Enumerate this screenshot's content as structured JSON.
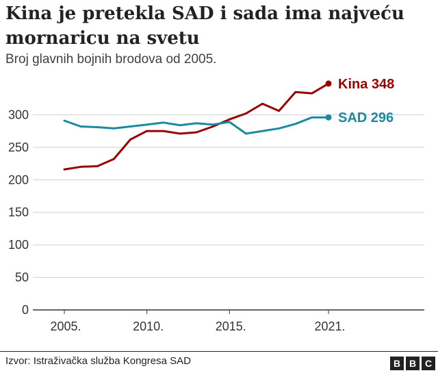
{
  "header": {
    "title": "Kina je pretekla SAD i sada ima najveću mornaricu na svetu",
    "subtitle": "Broj glavnih bojnih brodova od 2005."
  },
  "footer": {
    "source": "Izvor: Istraživačka služba Kongresa SAD",
    "logo_letters": [
      "B",
      "B",
      "C"
    ]
  },
  "chart_data": {
    "type": "line",
    "title": "Kina je pretekla SAD i sada ima najveću mornaricu na svetu",
    "subtitle": "Broj glavnih bojnih brodova od 2005.",
    "x": [
      2005,
      2006,
      2007,
      2008,
      2009,
      2010,
      2011,
      2012,
      2013,
      2014,
      2015,
      2016,
      2017,
      2018,
      2019,
      2020,
      2021
    ],
    "xticks": [
      2005,
      2010,
      2015,
      2021
    ],
    "xtick_labels": [
      "2005.",
      "2010.",
      "2015.",
      "2021."
    ],
    "yticks": [
      0,
      50,
      100,
      150,
      200,
      250,
      300
    ],
    "ytick_labels": [
      "0",
      "50",
      "100",
      "150",
      "200",
      "250",
      "300"
    ],
    "xlim": [
      2005,
      2021
    ],
    "ylim": [
      0,
      350
    ],
    "grid": "horizontal",
    "series": [
      {
        "name": "Kina",
        "end_label": "Kina 348",
        "color": "#990000",
        "values": [
          216,
          220,
          221,
          232,
          262,
          275,
          275,
          271,
          273,
          282,
          293,
          302,
          317,
          306,
          335,
          333,
          348
        ]
      },
      {
        "name": "SAD",
        "end_label": "SAD 296",
        "color": "#1b8aa0",
        "values": [
          291,
          282,
          281,
          279,
          282,
          285,
          288,
          284,
          287,
          285,
          289,
          271,
          275,
          279,
          286,
          296,
          296
        ]
      }
    ]
  }
}
